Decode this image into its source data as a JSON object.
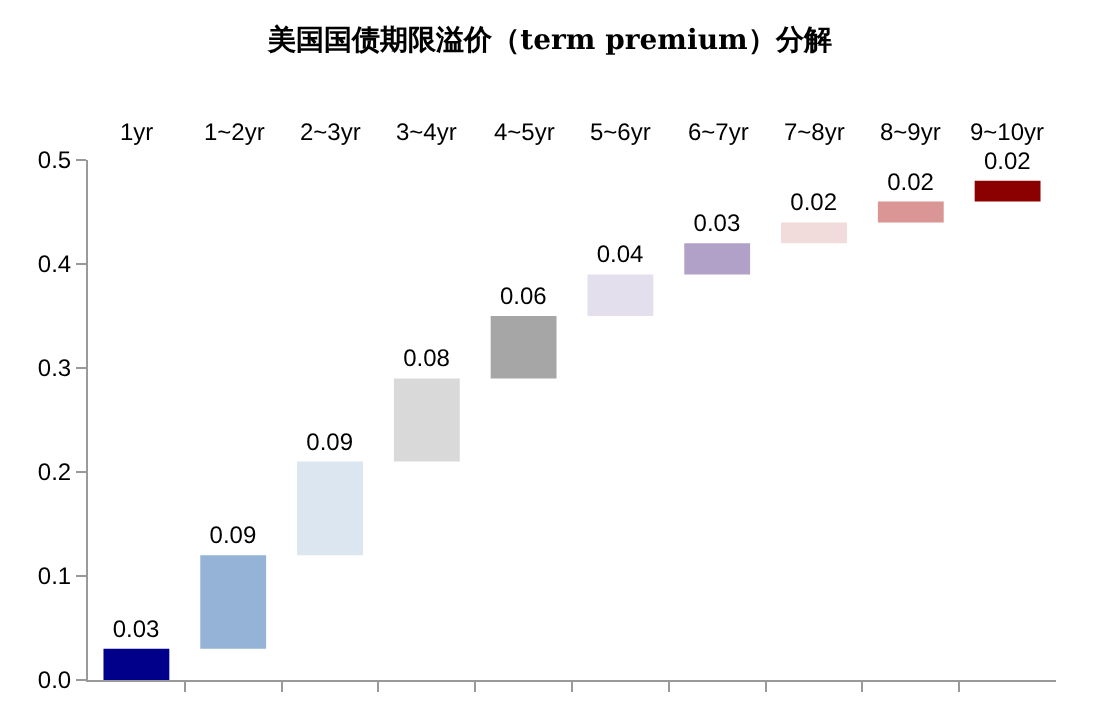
{
  "chart_data": {
    "type": "bar",
    "title": "美国国债期限溢价（term premium）分解",
    "categories": [
      "1yr",
      "1~2yr",
      "2~3yr",
      "3~4yr",
      "4~5yr",
      "5~6yr",
      "6~7yr",
      "7~8yr",
      "8~9yr",
      "9~10yr"
    ],
    "values": [
      0.03,
      0.09,
      0.09,
      0.08,
      0.06,
      0.04,
      0.03,
      0.02,
      0.02,
      0.02
    ],
    "base": [
      0,
      0.03,
      0.12,
      0.21,
      0.29,
      0.35,
      0.39,
      0.42,
      0.44,
      0.46
    ],
    "colors": [
      "#00008b",
      "#95b3d7",
      "#dce6f1",
      "#d9d9d9",
      "#a6a6a6",
      "#e4dfec",
      "#b1a0c7",
      "#f2dcdb",
      "#da9694",
      "#8b0000"
    ],
    "ylim": [
      0,
      0.5
    ],
    "yticks": [
      {
        "value": 0,
        "label": "0.0"
      },
      0.1,
      0.2,
      0.3,
      0.4,
      0.5
    ],
    "data_labels": true
  }
}
